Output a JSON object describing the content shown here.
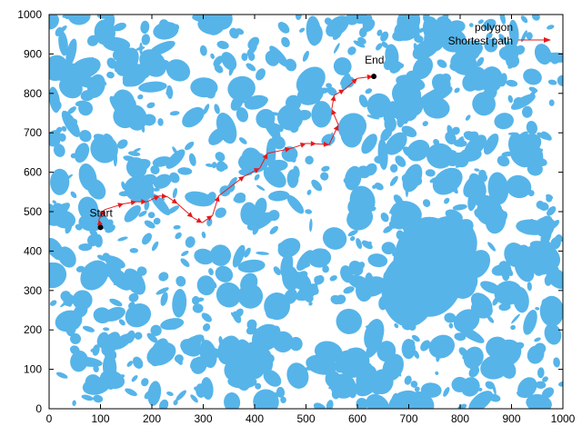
{
  "chart_data": {
    "type": "line",
    "title": "",
    "xlabel": "",
    "ylabel": "",
    "xlim": [
      0,
      1000
    ],
    "ylim": [
      0,
      1000
    ],
    "xticks": [
      "0",
      "100",
      "200",
      "300",
      "400",
      "500",
      "600",
      "700",
      "800",
      "900",
      "1000"
    ],
    "yticks": [
      "0",
      "100",
      "200",
      "300",
      "400",
      "500",
      "600",
      "700",
      "800",
      "900",
      "1000"
    ],
    "grid": false,
    "legend_position": "top-right",
    "legend": [
      {
        "name": "polygon",
        "color": "#56b4e9"
      },
      {
        "name": "Shortest path",
        "color": "#e41a1c"
      }
    ],
    "annotations": [
      {
        "text": "Start",
        "x": 100,
        "y": 460
      },
      {
        "text": "End",
        "x": 632,
        "y": 843
      }
    ],
    "series": [
      {
        "name": "Shortest path",
        "color": "#e41a1c",
        "x": [
          100,
          97,
          108,
          145,
          170,
          190,
          215,
          230,
          250,
          280,
          298,
          318,
          330,
          380,
          410,
          425,
          470,
          500,
          520,
          545,
          563,
          550,
          555,
          575,
          600,
          630
        ],
        "y": [
          460,
          480,
          505,
          520,
          525,
          525,
          540,
          538,
          520,
          485,
          472,
          490,
          540,
          590,
          610,
          648,
          660,
          673,
          672,
          670,
          720,
          760,
          795,
          810,
          838,
          843
        ]
      }
    ]
  }
}
